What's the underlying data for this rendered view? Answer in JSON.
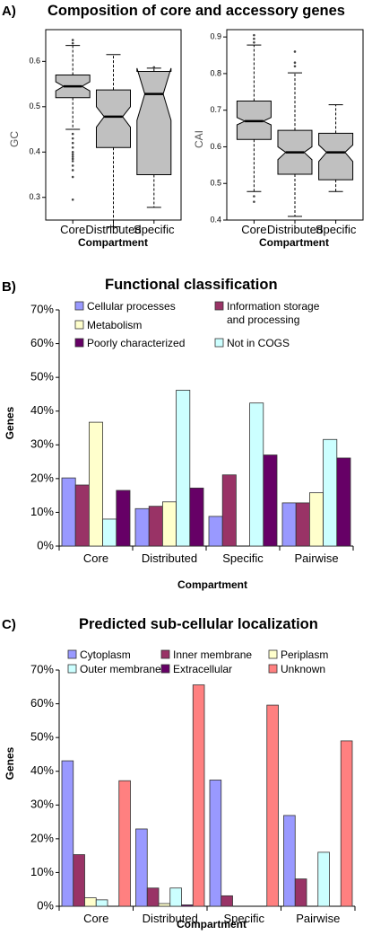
{
  "panel_a": {
    "letter": "A)",
    "title": "Composition of core and accessory genes"
  },
  "panel_b": {
    "letter": "B)",
    "title": "Functional classification"
  },
  "panel_c": {
    "letter": "C)",
    "title": "Predicted sub-cellular localization"
  },
  "chart_data": [
    {
      "type": "box",
      "ylabel": "GC",
      "xlabel": "Compartment",
      "categories": [
        "Core",
        "Distributed",
        "Specific"
      ],
      "ylim": [
        0.25,
        0.67
      ],
      "yticks": [
        "0.3",
        "0.4",
        "0.5",
        "0.6"
      ],
      "boxes": [
        {
          "whisker_low": 0.45,
          "q1": 0.52,
          "median": 0.545,
          "q3": 0.57,
          "whisker_high": 0.635,
          "notch": [
            0.535,
            0.555
          ],
          "outliers": [
            0.647,
            0.64,
            0.44,
            0.43,
            0.42,
            0.41,
            0.4,
            0.395,
            0.39,
            0.385,
            0.38,
            0.37,
            0.36,
            0.345,
            0.295
          ]
        },
        {
          "whisker_low": 0.235,
          "q1": 0.41,
          "median": 0.478,
          "q3": 0.537,
          "whisker_high": 0.615,
          "notch": [
            0.455,
            0.5
          ],
          "outliers": []
        },
        {
          "whisker_low": 0.278,
          "q1": 0.35,
          "median": 0.528,
          "q3": 0.578,
          "whisker_high": 0.585,
          "notch": [
            0.47,
            0.585
          ],
          "outliers": [
            0.587
          ]
        }
      ],
      "fill": "#c0c0c0"
    },
    {
      "type": "box",
      "ylabel": "CAI",
      "xlabel": "Compartment",
      "categories": [
        "Core",
        "Distributed",
        "Specific"
      ],
      "ylim": [
        0.4,
        0.92
      ],
      "yticks": [
        "0.4",
        "0.5",
        "0.6",
        "0.7",
        "0.8",
        "0.9"
      ],
      "boxes": [
        {
          "whisker_low": 0.478,
          "q1": 0.62,
          "median": 0.67,
          "q3": 0.725,
          "whisker_high": 0.878,
          "notch": [
            0.66,
            0.68
          ],
          "outliers": [
            0.905,
            0.895,
            0.885,
            0.465,
            0.45
          ]
        },
        {
          "whisker_low": 0.41,
          "q1": 0.525,
          "median": 0.585,
          "q3": 0.645,
          "whisker_high": 0.802,
          "notch": [
            0.565,
            0.6
          ],
          "outliers": [
            0.86,
            0.83,
            0.82
          ]
        },
        {
          "whisker_low": 0.478,
          "q1": 0.51,
          "median": 0.585,
          "q3": 0.637,
          "whisker_high": 0.715,
          "notch": [
            0.56,
            0.605
          ],
          "outliers": []
        }
      ],
      "fill": "#c0c0c0"
    },
    {
      "type": "bar",
      "ylabel": "Genes",
      "xlabel": "Compartment",
      "categories": [
        "Core",
        "Distributed",
        "Specific",
        "Pairwise"
      ],
      "ylim": [
        0,
        70
      ],
      "yticks": [
        "0%",
        "10%",
        "20%",
        "30%",
        "40%",
        "50%",
        "60%",
        "70%"
      ],
      "series": [
        {
          "name": "Cellular processes",
          "color": "#9999ff",
          "values": [
            20.2,
            11.1,
            8.8,
            12.8
          ]
        },
        {
          "name": "Information storage and processing",
          "color": "#993366",
          "values": [
            18.1,
            11.8,
            21.1,
            12.8
          ]
        },
        {
          "name": "Metabolism",
          "color": "#ffffcc",
          "values": [
            36.7,
            13.1,
            0,
            15.8
          ]
        },
        {
          "name": "Not in COGS",
          "color": "#ccffff",
          "values": [
            8.0,
            46.2,
            42.4,
            31.6
          ]
        },
        {
          "name": "Poorly characterized",
          "color": "#660066",
          "values": [
            16.5,
            17.2,
            27.0,
            26.1
          ]
        }
      ],
      "legend_rows": [
        [
          "Cellular processes",
          "Information storage",
          "and processing"
        ],
        [
          "Metabolism"
        ],
        [
          "Poorly characterized",
          "Not in COGS"
        ]
      ]
    },
    {
      "type": "bar",
      "ylabel": "Genes",
      "xlabel": "Compartment",
      "categories": [
        "Core",
        "Distributed",
        "Specific",
        "Pairwise"
      ],
      "ylim": [
        0,
        70
      ],
      "yticks": [
        "0%",
        "10%",
        "20%",
        "30%",
        "40%",
        "50%",
        "60%",
        "70%"
      ],
      "series": [
        {
          "name": "Cytoplasm",
          "color": "#9999ff",
          "values": [
            43.1,
            22.9,
            37.4,
            26.9
          ]
        },
        {
          "name": "Inner membrane",
          "color": "#993366",
          "values": [
            15.3,
            5.4,
            3.1,
            8.1
          ]
        },
        {
          "name": "Periplasm",
          "color": "#ffffcc",
          "values": [
            2.5,
            0.8,
            0,
            0
          ]
        },
        {
          "name": "Outer membrane",
          "color": "#ccffff",
          "values": [
            1.9,
            5.4,
            0,
            16.0
          ]
        },
        {
          "name": "Extracellular",
          "color": "#660066",
          "values": [
            0,
            0.4,
            0,
            0
          ]
        },
        {
          "name": "Unknown",
          "color": "#ff8080",
          "values": [
            37.2,
            65.6,
            59.6,
            49.0
          ]
        }
      ]
    }
  ]
}
